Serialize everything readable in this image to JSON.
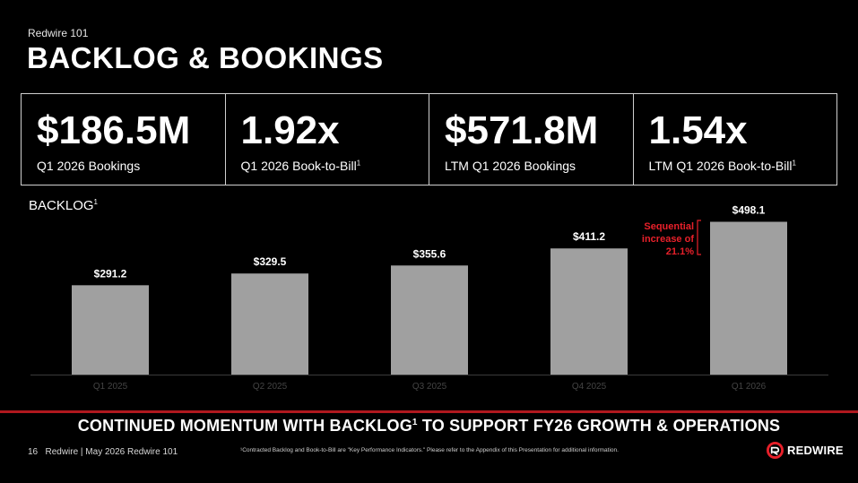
{
  "header": {
    "eyebrow": "Redwire 101",
    "title": "BACKLOG & BOOKINGS"
  },
  "kpis": [
    {
      "value": "$186.5M",
      "label": "Q1 2026 Bookings",
      "sup": ""
    },
    {
      "value": "1.92x",
      "label": "Q1 2026 Book-to-Bill",
      "sup": "1"
    },
    {
      "value": "$571.8M",
      "label": "LTM Q1 2026 Bookings",
      "sup": ""
    },
    {
      "value": "1.54x",
      "label": "LTM Q1 2026 Book-to-Bill",
      "sup": "1"
    }
  ],
  "chart_data": {
    "type": "bar",
    "title": "BACKLOG",
    "title_sup": "1",
    "categories": [
      "Q1 2025",
      "Q2 2025",
      "Q3 2025",
      "Q4 2025",
      "Q1 2026"
    ],
    "values": [
      291.2,
      329.5,
      355.6,
      411.2,
      498.1
    ],
    "data_labels": [
      "$291.2",
      "$329.5",
      "$355.6",
      "$411.2",
      "$498.1"
    ],
    "bar_color": "#a0a0a0",
    "ylim": [
      0,
      520
    ],
    "annotation": {
      "lines": [
        "Sequential",
        "increase of",
        "21.1%"
      ],
      "color": "#e8202a"
    }
  },
  "tagline": {
    "before": "CONTINUED MOMENTUM WITH BACKLOG",
    "sup": "1",
    "after": " TO SUPPORT FY26 GROWTH & OPERATIONS"
  },
  "footer": {
    "page_number": "16",
    "text": "Redwire | May 2026 Redwire 101",
    "footnote": "¹Contracted Backlog and Book-to-Bill are \"Key Performance Indicators.\" Please refer to the Appendix of this Presentation for additional information."
  },
  "logo": {
    "text": "REDWIRE",
    "accent": "#e8202a"
  }
}
